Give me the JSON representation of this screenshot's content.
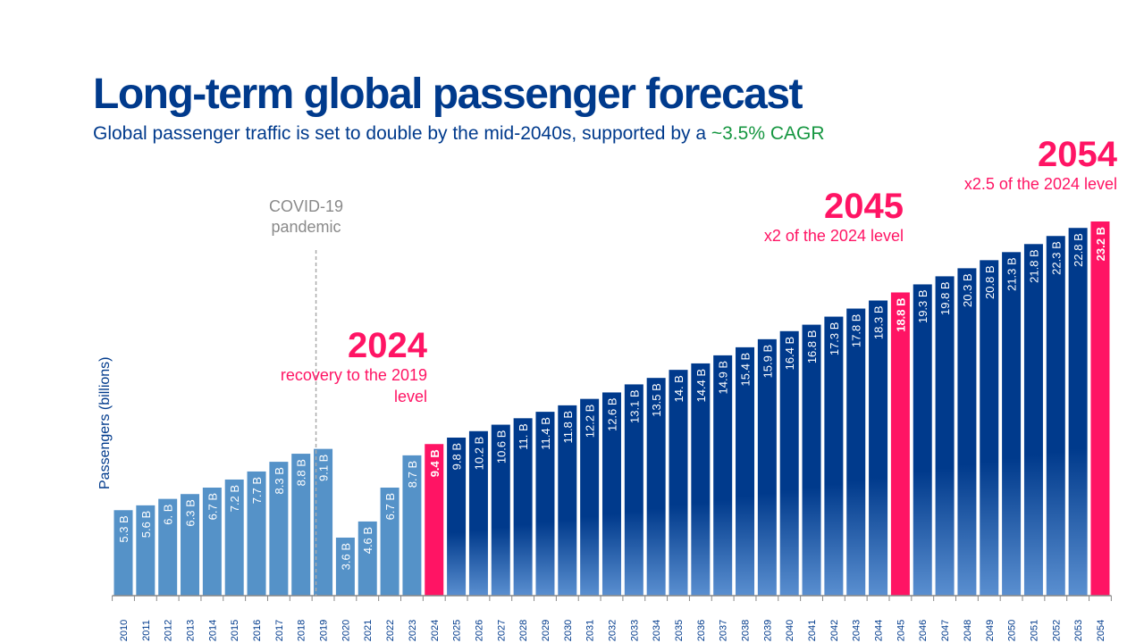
{
  "title": "Long-term global passenger forecast",
  "subtitle": {
    "text": "Global passenger traffic is set to double by the mid-2040s, supported by a ",
    "highlight": "~3.5% CAGR"
  },
  "annotations": {
    "covid": {
      "line1": "COVID-19",
      "line2": "pandemic"
    },
    "a2024": {
      "year": "2024",
      "text": "recovery to the 2019 level"
    },
    "a2045": {
      "year": "2045",
      "text": "x2 of the 2024 level"
    },
    "a2054": {
      "year": "2054",
      "text": "x2.5 of the 2024 level"
    }
  },
  "colors": {
    "historical": "#5592c8",
    "forecast": "#003a8c",
    "highlight": "#ff1464",
    "forecast_bottom": "#5a8fd0"
  },
  "chart_data": {
    "type": "bar",
    "ylabel": "Passengers (billions)",
    "categories": [
      "2010",
      "2011",
      "2012",
      "2013",
      "2014",
      "2015",
      "2016",
      "2017",
      "2018",
      "2019",
      "2020",
      "2021",
      "2022",
      "2023",
      "2024",
      "2025",
      "2026",
      "2027",
      "2028",
      "2029",
      "2030",
      "2031",
      "2032",
      "2033",
      "2034",
      "2035",
      "2036",
      "2037",
      "2038",
      "2039",
      "2040",
      "2041",
      "2042",
      "2043",
      "2044",
      "2045",
      "2046",
      "2047",
      "2048",
      "2049",
      "2050",
      "2051",
      "2052",
      "2053",
      "2054"
    ],
    "values": [
      5.3,
      5.6,
      6.0,
      6.3,
      6.7,
      7.2,
      7.7,
      8.3,
      8.8,
      9.1,
      3.6,
      4.6,
      6.7,
      8.7,
      9.4,
      9.8,
      10.2,
      10.6,
      11.0,
      11.4,
      11.8,
      12.2,
      12.6,
      13.1,
      13.5,
      14.0,
      14.4,
      14.9,
      15.4,
      15.9,
      16.4,
      16.8,
      17.3,
      17.8,
      18.3,
      18.8,
      19.3,
      19.8,
      20.3,
      20.8,
      21.3,
      21.8,
      22.3,
      22.8,
      23.2
    ],
    "labels": [
      "5.3 B",
      "5.6 B",
      "6. B",
      "6.3 B",
      "6.7 B",
      "7.2 B",
      "7.7 B",
      "8.3 B",
      "8.8 B",
      "9.1 B",
      "3.6 B",
      "4.6 B",
      "6.7 B",
      "8.7 B",
      "9.4 B",
      "9.8 B",
      "10.2 B",
      "10.6 B",
      "11. B",
      "11.4 B",
      "11.8 B",
      "12.2 B",
      "12.6 B",
      "13.1 B",
      "13.5 B",
      "14. B",
      "14.4 B",
      "14.9 B",
      "15.4 B",
      "15.9 B",
      "16.4 B",
      "16.8 B",
      "17.3 B",
      "17.8 B",
      "18.3 B",
      "18.8 B",
      "19.3 B",
      "19.8 B",
      "20.3 B",
      "20.8 B",
      "21.3 B",
      "21.8 B",
      "22.3 B",
      "22.8 B",
      "23.2 B"
    ],
    "highlighted": [
      "2024",
      "2045",
      "2054"
    ],
    "forecast_from": "2025",
    "ylim": [
      0,
      23.2
    ],
    "grid": false
  }
}
